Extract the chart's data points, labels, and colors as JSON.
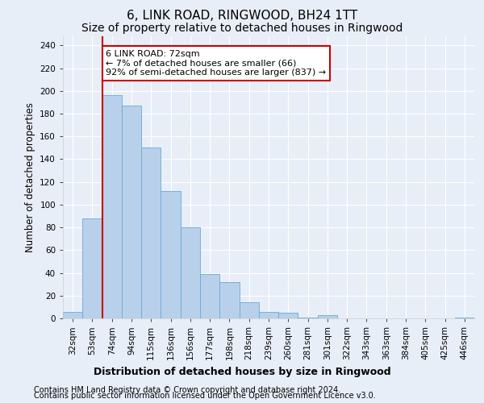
{
  "title": "6, LINK ROAD, RINGWOOD, BH24 1TT",
  "subtitle": "Size of property relative to detached houses in Ringwood",
  "xlabel": "Distribution of detached houses by size in Ringwood",
  "ylabel": "Number of detached properties",
  "categories": [
    "32sqm",
    "53sqm",
    "74sqm",
    "94sqm",
    "115sqm",
    "136sqm",
    "156sqm",
    "177sqm",
    "198sqm",
    "218sqm",
    "239sqm",
    "260sqm",
    "281sqm",
    "301sqm",
    "322sqm",
    "343sqm",
    "363sqm",
    "384sqm",
    "405sqm",
    "425sqm",
    "446sqm"
  ],
  "values": [
    6,
    88,
    196,
    187,
    150,
    112,
    80,
    39,
    32,
    14,
    6,
    5,
    1,
    3,
    0,
    0,
    0,
    0,
    0,
    0,
    1
  ],
  "bar_color": "#b8d0ea",
  "bar_edge_color": "#6aaad4",
  "red_line_index": 2,
  "red_line_color": "#cc0000",
  "annotation_text": "6 LINK ROAD: 72sqm\n← 7% of detached houses are smaller (66)\n92% of semi-detached houses are larger (837) →",
  "annotation_box_color": "#ffffff",
  "annotation_box_edge": "#cc0000",
  "ylim": [
    0,
    248
  ],
  "yticks": [
    0,
    20,
    40,
    60,
    80,
    100,
    120,
    140,
    160,
    180,
    200,
    220,
    240
  ],
  "footer1": "Contains HM Land Registry data © Crown copyright and database right 2024.",
  "footer2": "Contains public sector information licensed under the Open Government Licence v3.0.",
  "title_fontsize": 11,
  "subtitle_fontsize": 10,
  "xlabel_fontsize": 9,
  "ylabel_fontsize": 8.5,
  "tick_fontsize": 7.5,
  "annotation_fontsize": 8,
  "footer_fontsize": 7,
  "background_color": "#e8eef8",
  "grid_color": "#ffffff"
}
